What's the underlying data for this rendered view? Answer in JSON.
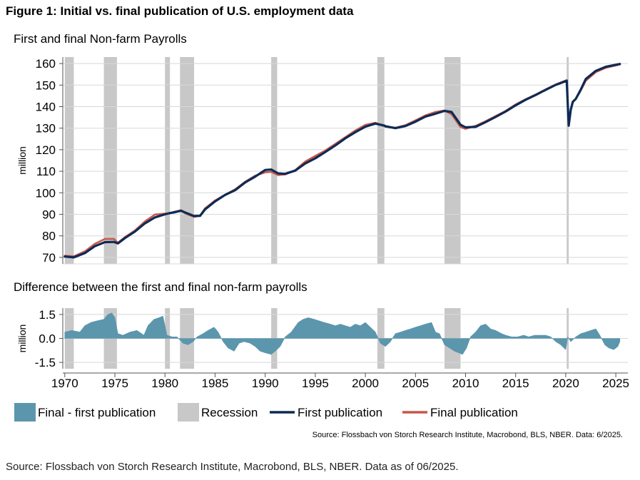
{
  "figure_title": "Figure 1: Initial vs. final publication of U.S. employment data",
  "source_small": "Source: Flossbach von Storch Research Institute, Macrobond, BLS, NBER. Data: 6/2025.",
  "source_bottom": "Source: Flossbach von Storch Research Institute, Macrobond, BLS, NBER. Data as of 06/2025.",
  "colors": {
    "first": "#0d2a55",
    "final": "#c8574a",
    "diff": "#5b96ad",
    "recession": "#c8c8c8",
    "grid": "#d8d8d8"
  },
  "chart_data": [
    {
      "type": "line",
      "title": "First and final Non-farm Payrolls",
      "ylabel": "million",
      "ylim": [
        67,
        163
      ],
      "yticks": [
        "70",
        "80",
        "90",
        "100",
        "110",
        "120",
        "130",
        "140",
        "150",
        "160"
      ],
      "xlim": [
        1969.8,
        2026.2
      ],
      "series": [
        {
          "name": "Final publication",
          "x": [
            1970,
            1970.9,
            1972,
            1973,
            1974,
            1974.9,
            1975.3,
            1976,
            1977,
            1978,
            1979,
            1980,
            1980.5,
            1981,
            1981.6,
            1982,
            1982.9,
            1983.5,
            1984,
            1985,
            1986,
            1987,
            1988,
            1989,
            1990,
            1990.6,
            1991.3,
            1992,
            1993,
            1994,
            1995,
            1996,
            1997,
            1998,
            1999,
            2000,
            2001,
            2001.9,
            2002,
            2003,
            2004,
            2005,
            2006,
            2007,
            2007.9,
            2008.6,
            2009.5,
            2010,
            2011,
            2012,
            2013,
            2014,
            2015,
            2016,
            2017,
            2018,
            2019,
            2020.1,
            2020.3,
            2020.5,
            2020.7,
            2021,
            2021.5,
            2022,
            2023,
            2024,
            2025.4
          ],
          "y": [
            70.8,
            70.5,
            72.8,
            76.3,
            78.6,
            78.6,
            76.8,
            79.4,
            82.5,
            86.7,
            89.9,
            90.3,
            90.5,
            91.3,
            91.9,
            90.5,
            88.8,
            89.4,
            92.8,
            96.4,
            99.1,
            101.6,
            105.1,
            107.9,
            109.5,
            109.7,
            108.2,
            108.5,
            110.5,
            114.5,
            117.1,
            119.6,
            122.7,
            125.8,
            128.9,
            131.5,
            132.5,
            130.9,
            130.7,
            130.2,
            131.4,
            133.6,
            135.9,
            137.5,
            138.2,
            136.5,
            130.5,
            129.7,
            131.1,
            133.2,
            135.6,
            138.0,
            141.0,
            143.4,
            145.6,
            148.0,
            150.3,
            152.3,
            131.0,
            138.5,
            142.0,
            143.5,
            147.5,
            152.0,
            156.0,
            158.0,
            159.6
          ]
        },
        {
          "name": "First publication",
          "x": [
            1970,
            1970.9,
            1972,
            1973,
            1974,
            1974.9,
            1975.3,
            1976,
            1977,
            1978,
            1979,
            1980,
            1980.5,
            1981,
            1981.6,
            1982,
            1982.9,
            1983.5,
            1984,
            1985,
            1986,
            1987,
            1988,
            1989,
            1990,
            1990.6,
            1991.3,
            1992,
            1993,
            1994,
            1995,
            1996,
            1997,
            1998,
            1999,
            2000,
            2001,
            2001.9,
            2002,
            2003,
            2004,
            2005,
            2006,
            2007,
            2007.9,
            2008.6,
            2009.5,
            2010,
            2011,
            2012,
            2013,
            2014,
            2015,
            2016,
            2017,
            2018,
            2019,
            2020.1,
            2020.3,
            2020.5,
            2020.7,
            2021,
            2021.5,
            2022,
            2023,
            2024,
            2025.4
          ],
          "y": [
            70.4,
            70.0,
            72.0,
            75.2,
            77.1,
            77.2,
            76.5,
            79.0,
            82.0,
            85.8,
            88.6,
            90.0,
            90.6,
            91.0,
            91.7,
            90.9,
            89.2,
            89.3,
            92.3,
            96.0,
            99.0,
            101.2,
            104.8,
            107.5,
            110.6,
            110.8,
            109.0,
            108.8,
            110.3,
            113.6,
            116.0,
            118.9,
            122.0,
            125.3,
            128.1,
            130.7,
            132.1,
            131.2,
            130.9,
            130.0,
            131.0,
            133.0,
            135.4,
            136.7,
            138.0,
            137.5,
            131.6,
            130.4,
            130.6,
            132.8,
            135.2,
            137.7,
            140.6,
            143.2,
            145.4,
            147.8,
            150.1,
            152.0,
            131.2,
            138.6,
            142.2,
            143.6,
            147.9,
            152.8,
            156.6,
            158.5,
            159.8
          ]
        }
      ],
      "recessions": [
        [
          1970.0,
          1970.9
        ],
        [
          1973.9,
          1975.2
        ],
        [
          1980.0,
          1980.5
        ],
        [
          1981.5,
          1982.9
        ],
        [
          1990.6,
          1991.2
        ],
        [
          2001.2,
          2001.9
        ],
        [
          2007.9,
          2009.5
        ],
        [
          2020.1,
          2020.3
        ]
      ]
    },
    {
      "type": "area",
      "title": "Difference between the first and final non-farm payrolls",
      "ylabel": "million",
      "ylim": [
        -1.9,
        1.9
      ],
      "yticks": [
        "1.5",
        "0.0",
        "-1.5"
      ],
      "xlim": [
        1969.8,
        2026.2
      ],
      "xticks": [
        "1970",
        "1975",
        "1980",
        "1985",
        "1990",
        "1995",
        "2000",
        "2005",
        "2010",
        "2015",
        "2020",
        "2025"
      ],
      "series": [
        {
          "name": "Final - first publication",
          "x": [
            1970,
            1970.7,
            1971.5,
            1972,
            1972.6,
            1973.2,
            1973.9,
            1974.3,
            1974.7,
            1975,
            1975.3,
            1975.8,
            1976.5,
            1977.2,
            1977.9,
            1978.3,
            1978.9,
            1979.4,
            1979.8,
            1980.2,
            1980.7,
            1981.2,
            1981.8,
            1982.3,
            1982.8,
            1983.2,
            1983.8,
            1984.3,
            1984.9,
            1985.3,
            1985.8,
            1986.3,
            1986.9,
            1987.4,
            1987.9,
            1988.5,
            1989,
            1989.5,
            1990,
            1990.6,
            1991,
            1991.5,
            1992,
            1992.6,
            1993.3,
            1993.8,
            1994.3,
            1994.9,
            1995.4,
            1995.9,
            1996.5,
            1997,
            1997.5,
            1998,
            1998.5,
            1999,
            1999.5,
            2000,
            2000.5,
            2001,
            2001.5,
            2002,
            2002.5,
            2003,
            2003.5,
            2004,
            2004.5,
            2005,
            2005.5,
            2006,
            2006.6,
            2007,
            2007.4,
            2007.9,
            2008.4,
            2008.9,
            2009.3,
            2009.7,
            2010.1,
            2010.5,
            2011,
            2011.5,
            2012,
            2012.5,
            2013,
            2013.6,
            2014,
            2014.6,
            2015.2,
            2015.8,
            2016.3,
            2016.9,
            2017.4,
            2018,
            2018.5,
            2019,
            2019.5,
            2020,
            2020.2,
            2020.5,
            2021,
            2021.5,
            2022,
            2022.5,
            2023,
            2023.4,
            2023.9,
            2024.3,
            2024.8,
            2025.2,
            2025.4
          ],
          "y": [
            0.4,
            0.5,
            0.4,
            0.8,
            1.0,
            1.1,
            1.2,
            1.5,
            1.6,
            1.3,
            0.3,
            0.2,
            0.4,
            0.5,
            0.2,
            0.8,
            1.2,
            1.3,
            1.4,
            0.2,
            0.1,
            0.1,
            -0.3,
            -0.4,
            -0.2,
            0.1,
            0.3,
            0.5,
            0.7,
            0.4,
            -0.2,
            -0.6,
            -0.8,
            -0.3,
            -0.2,
            -0.3,
            -0.5,
            -0.8,
            -0.9,
            -1.0,
            -0.8,
            -0.5,
            0.1,
            0.4,
            1.0,
            1.2,
            1.3,
            1.2,
            1.1,
            1.0,
            0.9,
            0.8,
            0.9,
            0.8,
            0.7,
            0.9,
            0.8,
            1.0,
            0.7,
            0.4,
            -0.3,
            -0.5,
            -0.2,
            0.3,
            0.4,
            0.5,
            0.6,
            0.7,
            0.8,
            0.9,
            1.0,
            0.4,
            0.3,
            -0.4,
            -0.6,
            -0.8,
            -0.9,
            -1.0,
            -0.6,
            0.1,
            0.4,
            0.8,
            0.9,
            0.6,
            0.5,
            0.3,
            0.2,
            0.1,
            0.1,
            0.2,
            0.1,
            0.2,
            0.2,
            0.2,
            0.1,
            -0.2,
            -0.4,
            -0.7,
            0.1,
            -0.2,
            0.1,
            0.3,
            0.4,
            0.5,
            0.6,
            0.2,
            -0.4,
            -0.6,
            -0.7,
            -0.5,
            -0.2
          ]
        }
      ],
      "recessions": [
        [
          1970.0,
          1970.9
        ],
        [
          1973.9,
          1975.2
        ],
        [
          1980.0,
          1980.5
        ],
        [
          1981.5,
          1982.9
        ],
        [
          1990.6,
          1991.2
        ],
        [
          2001.2,
          2001.9
        ],
        [
          2007.9,
          2009.5
        ],
        [
          2020.1,
          2020.3
        ]
      ]
    }
  ],
  "legend": [
    {
      "label": "Final - first publication",
      "kind": "swatch",
      "color": "#5b96ad"
    },
    {
      "label": "Recession",
      "kind": "swatch",
      "color": "#c8c8c8"
    },
    {
      "label": "First publication",
      "kind": "line",
      "color": "#0d2a55"
    },
    {
      "label": "Final publication",
      "kind": "line",
      "color": "#c8574a"
    }
  ]
}
